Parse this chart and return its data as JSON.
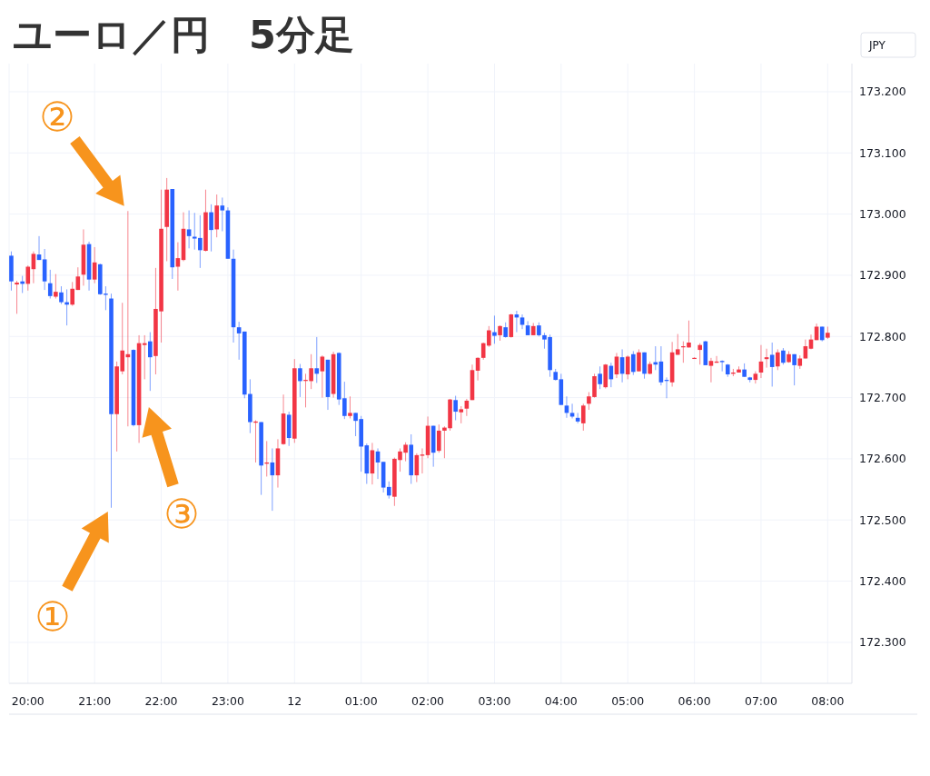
{
  "chart_data": {
    "type": "candlestick",
    "title": "ユーロ／円　5分足",
    "ylabel": "JPY",
    "categories": [
      null,
      null,
      null,
      "20:00",
      null,
      null,
      null,
      null,
      null,
      null,
      null,
      null,
      null,
      null,
      null,
      "21:00",
      null,
      null,
      null,
      null,
      null,
      null,
      null,
      null,
      null,
      null,
      null,
      "22:00",
      null,
      null,
      null,
      null,
      null,
      null,
      null,
      null,
      null,
      null,
      null,
      "23:00",
      null,
      null,
      null,
      null,
      null,
      null,
      null,
      null,
      null,
      null,
      null,
      "12",
      null,
      null,
      null,
      null,
      null,
      null,
      null,
      null,
      null,
      null,
      null,
      "01:00",
      null,
      null,
      null,
      null,
      null,
      null,
      null,
      null,
      null,
      null,
      null,
      "02:00",
      null,
      null,
      null,
      null,
      null,
      null,
      null,
      null,
      null,
      null,
      null,
      "03:00",
      null,
      null,
      null,
      null,
      null,
      null,
      null,
      null,
      null,
      null,
      null,
      "04:00",
      null,
      null,
      null,
      null,
      null,
      null,
      null,
      null,
      null,
      null,
      null,
      "05:00",
      null,
      null,
      null,
      null,
      null,
      null,
      null,
      null,
      null,
      null,
      null,
      "06:00",
      null,
      null,
      null,
      null,
      null,
      null,
      null,
      null,
      null,
      null,
      null,
      "07:00",
      null,
      null,
      null,
      null,
      null,
      null,
      null,
      null,
      null,
      null,
      null,
      "08:00"
    ],
    "ohlc": [
      [
        172.932,
        172.939,
        172.875,
        172.89
      ],
      [
        172.885,
        172.891,
        172.837,
        172.888
      ],
      [
        172.89,
        172.899,
        172.871,
        172.886
      ],
      [
        172.886,
        172.916,
        172.875,
        172.914
      ],
      [
        172.91,
        172.939,
        172.887,
        172.935
      ],
      [
        172.934,
        172.964,
        172.925,
        172.925
      ],
      [
        172.926,
        172.943,
        172.876,
        172.89
      ],
      [
        172.887,
        172.909,
        172.862,
        172.866
      ],
      [
        172.865,
        172.902,
        172.862,
        172.873
      ],
      [
        172.872,
        172.882,
        172.853,
        172.856
      ],
      [
        172.856,
        172.877,
        172.818,
        172.852
      ],
      [
        172.852,
        172.889,
        172.85,
        172.878
      ],
      [
        172.876,
        172.913,
        172.876,
        172.898
      ],
      [
        172.901,
        172.975,
        172.883,
        172.95
      ],
      [
        172.951,
        172.955,
        172.875,
        172.893
      ],
      [
        172.893,
        172.946,
        172.887,
        172.921
      ],
      [
        172.918,
        172.919,
        172.868,
        172.869
      ],
      [
        172.87,
        172.882,
        172.843,
        172.868
      ],
      [
        172.862,
        172.87,
        172.52,
        172.673
      ],
      [
        172.673,
        172.759,
        172.612,
        172.751
      ],
      [
        172.743,
        172.855,
        172.738,
        172.777
      ],
      [
        172.766,
        173.005,
        172.653,
        172.771
      ],
      [
        172.778,
        172.779,
        172.653,
        172.655
      ],
      [
        172.655,
        172.802,
        172.626,
        172.789
      ],
      [
        172.786,
        172.802,
        172.73,
        172.789
      ],
      [
        172.792,
        172.807,
        172.711,
        172.766
      ],
      [
        172.768,
        172.912,
        172.738,
        172.845
      ],
      [
        172.841,
        173.04,
        172.79,
        172.976
      ],
      [
        172.979,
        173.059,
        172.923,
        173.04
      ],
      [
        173.041,
        173.041,
        172.894,
        172.913
      ],
      [
        172.914,
        172.954,
        172.875,
        172.928
      ],
      [
        172.925,
        173.003,
        172.923,
        172.976
      ],
      [
        172.975,
        173.006,
        172.944,
        172.964
      ],
      [
        172.963,
        173.002,
        172.942,
        172.96
      ],
      [
        172.961,
        172.998,
        172.912,
        172.941
      ],
      [
        172.94,
        173.04,
        172.939,
        173.003
      ],
      [
        173.003,
        173.016,
        172.939,
        172.974
      ],
      [
        172.975,
        173.032,
        172.962,
        173.014
      ],
      [
        173.014,
        173.027,
        172.972,
        173.006
      ],
      [
        173.006,
        173.011,
        172.927,
        172.927
      ],
      [
        172.927,
        172.942,
        172.79,
        172.815
      ],
      [
        172.815,
        172.824,
        172.762,
        172.805
      ],
      [
        172.808,
        172.808,
        172.699,
        172.705
      ],
      [
        172.706,
        172.73,
        172.642,
        172.66
      ],
      [
        172.659,
        172.663,
        172.594,
        172.661
      ],
      [
        172.66,
        172.66,
        172.541,
        172.589
      ],
      [
        172.592,
        172.629,
        172.571,
        172.594
      ],
      [
        172.594,
        172.617,
        172.515,
        172.573
      ],
      [
        172.573,
        172.632,
        172.553,
        172.617
      ],
      [
        172.624,
        172.705,
        172.623,
        172.674
      ],
      [
        172.672,
        172.677,
        172.621,
        172.634
      ],
      [
        172.633,
        172.763,
        172.626,
        172.748
      ],
      [
        172.748,
        172.755,
        172.701,
        172.727
      ],
      [
        172.728,
        172.739,
        172.684,
        172.729
      ],
      [
        172.727,
        172.771,
        172.714,
        172.748
      ],
      [
        172.748,
        172.799,
        172.724,
        172.739
      ],
      [
        172.743,
        172.769,
        172.7,
        172.767
      ],
      [
        172.762,
        172.762,
        172.68,
        172.701
      ],
      [
        172.706,
        172.775,
        172.7,
        172.771
      ],
      [
        172.773,
        172.774,
        172.688,
        172.697
      ],
      [
        172.699,
        172.726,
        172.665,
        172.67
      ],
      [
        172.67,
        172.702,
        172.666,
        172.675
      ],
      [
        172.675,
        172.675,
        172.637,
        172.662
      ],
      [
        172.665,
        172.67,
        172.579,
        172.62
      ],
      [
        172.622,
        172.625,
        172.559,
        172.576
      ],
      [
        172.576,
        172.626,
        172.558,
        172.614
      ],
      [
        172.612,
        172.617,
        172.567,
        172.594
      ],
      [
        172.595,
        172.595,
        172.545,
        172.553
      ],
      [
        172.554,
        172.563,
        172.535,
        172.54
      ],
      [
        172.538,
        172.602,
        172.523,
        172.6
      ],
      [
        172.598,
        172.617,
        172.579,
        172.612
      ],
      [
        172.61,
        172.627,
        172.596,
        172.623
      ],
      [
        172.623,
        172.64,
        172.559,
        172.573
      ],
      [
        172.573,
        172.609,
        172.562,
        172.606
      ],
      [
        172.605,
        172.617,
        172.576,
        172.607
      ],
      [
        172.606,
        172.669,
        172.601,
        172.654
      ],
      [
        172.654,
        172.654,
        172.587,
        172.61
      ],
      [
        172.613,
        172.656,
        172.61,
        172.646
      ],
      [
        172.646,
        172.653,
        172.601,
        172.651
      ],
      [
        172.65,
        172.698,
        172.646,
        172.697
      ],
      [
        172.696,
        172.703,
        172.663,
        172.677
      ],
      [
        172.676,
        172.686,
        172.658,
        172.681
      ],
      [
        172.682,
        172.698,
        172.67,
        172.695
      ],
      [
        172.696,
        172.754,
        172.696,
        172.745
      ],
      [
        172.744,
        172.766,
        172.728,
        172.765
      ],
      [
        172.765,
        172.79,
        172.762,
        172.789
      ],
      [
        172.785,
        172.817,
        172.783,
        172.81
      ],
      [
        172.807,
        172.834,
        172.788,
        172.801
      ],
      [
        172.802,
        172.818,
        172.793,
        172.817
      ],
      [
        172.815,
        172.823,
        172.798,
        172.799
      ],
      [
        172.799,
        172.837,
        172.798,
        172.836
      ],
      [
        172.836,
        172.842,
        172.807,
        172.831
      ],
      [
        172.831,
        172.836,
        172.812,
        172.819
      ],
      [
        172.818,
        172.825,
        172.802,
        172.802
      ],
      [
        172.802,
        172.822,
        172.802,
        172.817
      ],
      [
        172.818,
        172.823,
        172.8,
        172.802
      ],
      [
        172.802,
        172.806,
        172.78,
        172.795
      ],
      [
        172.799,
        172.803,
        172.734,
        172.745
      ],
      [
        172.742,
        172.747,
        172.728,
        172.729
      ],
      [
        172.73,
        172.739,
        172.688,
        172.688
      ],
      [
        172.687,
        172.702,
        172.667,
        172.675
      ],
      [
        172.675,
        172.69,
        172.666,
        172.669
      ],
      [
        172.667,
        172.675,
        172.658,
        172.661
      ],
      [
        172.658,
        172.69,
        172.646,
        172.687
      ],
      [
        172.69,
        172.709,
        172.68,
        172.702
      ],
      [
        172.701,
        172.739,
        172.7,
        172.735
      ],
      [
        172.739,
        172.751,
        172.714,
        172.722
      ],
      [
        172.717,
        172.755,
        172.715,
        172.754
      ],
      [
        172.752,
        172.757,
        172.717,
        172.73
      ],
      [
        172.738,
        172.773,
        172.732,
        172.767
      ],
      [
        172.766,
        172.779,
        172.725,
        172.739
      ],
      [
        172.738,
        172.769,
        172.73,
        172.767
      ],
      [
        172.771,
        172.776,
        172.737,
        172.742
      ],
      [
        172.743,
        172.779,
        172.743,
        172.774
      ],
      [
        172.774,
        172.774,
        172.731,
        172.739
      ],
      [
        172.739,
        172.759,
        172.738,
        172.755
      ],
      [
        172.758,
        172.784,
        172.745,
        172.754
      ],
      [
        172.759,
        172.784,
        172.72,
        172.725
      ],
      [
        172.729,
        172.733,
        172.699,
        172.728
      ],
      [
        172.725,
        172.791,
        172.718,
        172.774
      ],
      [
        172.77,
        172.804,
        172.77,
        172.779
      ],
      [
        172.783,
        172.792,
        172.757,
        172.784
      ],
      [
        172.782,
        172.826,
        172.782,
        172.79
      ],
      [
        172.764,
        172.766,
        172.764,
        172.765
      ],
      [
        172.778,
        172.789,
        172.754,
        172.786
      ],
      [
        172.792,
        172.793,
        172.753,
        172.753
      ],
      [
        172.752,
        172.765,
        172.725,
        172.76
      ],
      [
        172.757,
        172.768,
        172.757,
        172.759
      ],
      [
        172.76,
        172.761,
        172.743,
        172.758
      ],
      [
        172.754,
        172.755,
        172.734,
        172.738
      ],
      [
        172.739,
        172.747,
        172.735,
        172.741
      ],
      [
        172.741,
        172.751,
        172.741,
        172.746
      ],
      [
        172.746,
        172.756,
        172.734,
        172.734
      ],
      [
        172.733,
        172.734,
        172.725,
        172.729
      ],
      [
        172.729,
        172.743,
        172.723,
        172.739
      ],
      [
        172.741,
        172.786,
        172.732,
        172.759
      ],
      [
        172.763,
        172.78,
        172.749,
        172.766
      ],
      [
        172.77,
        172.79,
        172.718,
        172.75
      ],
      [
        172.751,
        172.779,
        172.745,
        172.774
      ],
      [
        172.777,
        172.781,
        172.754,
        172.757
      ],
      [
        172.758,
        172.776,
        172.757,
        172.771
      ],
      [
        172.771,
        172.771,
        172.72,
        172.753
      ],
      [
        172.752,
        172.769,
        172.747,
        172.764
      ],
      [
        172.764,
        172.795,
        172.764,
        172.784
      ],
      [
        172.78,
        172.803,
        172.779,
        172.795
      ],
      [
        172.794,
        172.821,
        172.794,
        172.816
      ],
      [
        172.816,
        172.816,
        172.792,
        172.794
      ],
      [
        172.798,
        172.816,
        172.796,
        172.806
      ]
    ],
    "ylim": [
      172.233,
      173.246
    ],
    "yticks": [
      {
        "value": 172.3,
        "label": "172.300"
      },
      {
        "value": 172.4,
        "label": "172.400"
      },
      {
        "value": 172.5,
        "label": "172.500"
      },
      {
        "value": 172.6,
        "label": "172.600"
      },
      {
        "value": 172.7,
        "label": "172.700"
      },
      {
        "value": 172.8,
        "label": "172.800"
      },
      {
        "value": 172.9,
        "label": "172.900"
      },
      {
        "value": 173.0,
        "label": "173.000"
      },
      {
        "value": 173.1,
        "label": "173.100"
      },
      {
        "value": 173.2,
        "label": "173.200"
      }
    ],
    "grid": true,
    "annotations": [
      "①",
      "②",
      "③"
    ]
  }
}
